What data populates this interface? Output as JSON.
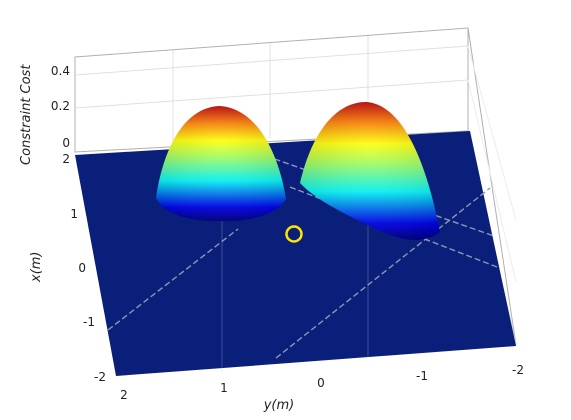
{
  "chart_data": {
    "type": "surface",
    "zlabel": "Constraint Cost",
    "xlabel": "x(m)",
    "ylabel": "y(m)",
    "x_ticks": [
      "2",
      "1",
      "0",
      "-1",
      "-2"
    ],
    "y_ticks": [
      "2",
      "1",
      "0",
      "-1",
      "-2"
    ],
    "z_ticks": [
      "0.4",
      "0.2",
      "0"
    ],
    "xlim": [
      -2,
      2
    ],
    "ylim": [
      -2,
      2
    ],
    "zlim": [
      0,
      0.45
    ],
    "grid": true,
    "colormap": "jet",
    "floor_color": "#0a1f7a",
    "obstacles": [
      {
        "x": 0.9,
        "y": 0.9,
        "radius": 0.6,
        "peak": 0.29
      },
      {
        "x": 1.15,
        "y": -0.2,
        "radius": 0.65,
        "peak": 0.33
      }
    ],
    "marker": {
      "x": 0.25,
      "y": 0.35,
      "color": "#ffe600"
    }
  }
}
